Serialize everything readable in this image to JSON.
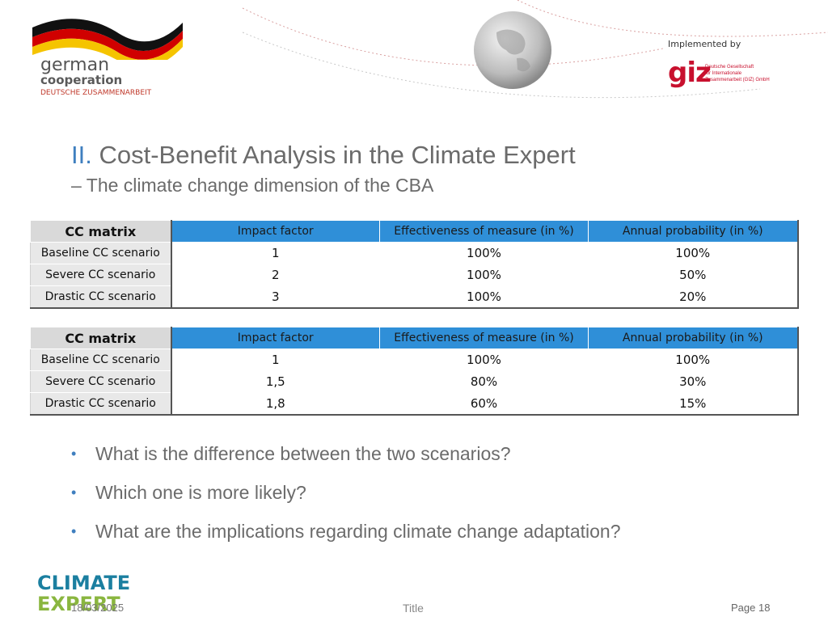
{
  "header": {
    "logo_left": {
      "line1": "german",
      "line2": "cooperation",
      "line3": "DEUTSCHE ZUSAMMENARBEIT"
    },
    "implemented_by": "Implemented by",
    "giz": {
      "mark": "giz",
      "line1": "Deutsche Gesellschaft",
      "line2": "für Internationale",
      "line3": "Zusammenarbeit (GIZ) GmbH"
    }
  },
  "title": {
    "number": "II.",
    "text": "Cost-Benefit Analysis in the Climate Expert",
    "subtitle": "– The climate change dimension of the CBA"
  },
  "table1": {
    "headers": [
      "CC matrix",
      "Impact factor",
      "Effectiveness of measure (in %)",
      "Annual probability (in %)"
    ],
    "rows": [
      [
        "Baseline CC scenario",
        "1",
        "100%",
        "100%"
      ],
      [
        "Severe CC scenario",
        "2",
        "100%",
        "50%"
      ],
      [
        "Drastic CC scenario",
        "3",
        "100%",
        "20%"
      ]
    ]
  },
  "table2": {
    "headers": [
      "CC matrix",
      "Impact factor",
      "Effectiveness of measure (in %)",
      "Annual probability (in %)"
    ],
    "rows": [
      [
        "Baseline CC scenario",
        "1",
        "100%",
        "100%"
      ],
      [
        "Severe CC scenario",
        "1,5",
        "80%",
        "30%"
      ],
      [
        "Drastic CC scenario",
        "1,8",
        "60%",
        "15%"
      ]
    ]
  },
  "bullets": [
    "What is the difference between the two scenarios?",
    "Which one is more likely?",
    "What are the implications regarding climate change adaptation?"
  ],
  "footer": {
    "logo_line1": "CLIMATE",
    "logo_line2": "EXPERT",
    "date": "18/03/2025",
    "center": "Title",
    "page": "Page 18"
  },
  "colors": {
    "header_blue": "#2f8fd8",
    "accent_blue": "#3f7fbf",
    "giz_red": "#c8102e",
    "climate_teal": "#1b7fa0",
    "expert_green": "#8ab63f"
  }
}
